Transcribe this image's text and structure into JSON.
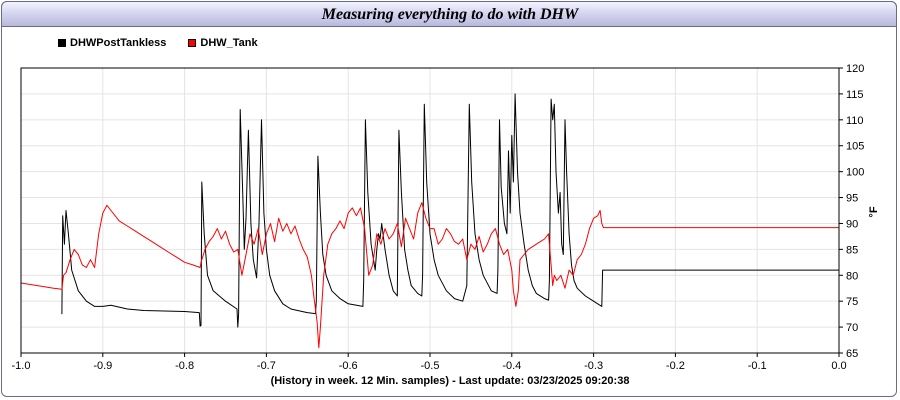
{
  "chart_data": {
    "type": "line",
    "title": "Measuring everything to do with DHW",
    "xlabel": "(History in week. 12 Min. samples) - Last update: 03/23/2025 09:20:38",
    "ylabel": "°F",
    "xlim": [
      -1.0,
      0.0
    ],
    "ylim": [
      65,
      120
    ],
    "x_ticks": [
      "-1.0",
      "-0.9",
      "-0.8",
      "-0.7",
      "-0.6",
      "-0.5",
      "-0.4",
      "-0.3",
      "-0.2",
      "-0.1",
      "0.0"
    ],
    "y_ticks": [
      "65",
      "70",
      "75",
      "80",
      "85",
      "90",
      "95",
      "100",
      "105",
      "110",
      "115",
      "120"
    ],
    "grid": true,
    "legend": "top-left",
    "series": [
      {
        "name": "DHWPostTankless",
        "color": "#000000",
        "points": [
          [
            -0.95,
            72.5
          ],
          [
            -0.949,
            91.5
          ],
          [
            -0.947,
            86
          ],
          [
            -0.945,
            92.5
          ],
          [
            -0.942,
            88
          ],
          [
            -0.938,
            81
          ],
          [
            -0.93,
            77
          ],
          [
            -0.92,
            75
          ],
          [
            -0.91,
            74
          ],
          [
            -0.9,
            74
          ],
          [
            -0.89,
            74.2
          ],
          [
            -0.87,
            73.5
          ],
          [
            -0.85,
            73.2
          ],
          [
            -0.8,
            73
          ],
          [
            -0.782,
            72.8
          ],
          [
            -0.781,
            70.2
          ],
          [
            -0.78,
            70.3
          ],
          [
            -0.779,
            98
          ],
          [
            -0.776,
            88
          ],
          [
            -0.772,
            80
          ],
          [
            -0.765,
            77
          ],
          [
            -0.75,
            75
          ],
          [
            -0.736,
            73.5
          ],
          [
            -0.735,
            70
          ],
          [
            -0.734,
            72.5
          ],
          [
            -0.732,
            112
          ],
          [
            -0.729,
            96
          ],
          [
            -0.727,
            85
          ],
          [
            -0.725,
            91
          ],
          [
            -0.722,
            108
          ],
          [
            -0.719,
            90
          ],
          [
            -0.716,
            83
          ],
          [
            -0.712,
            79.5
          ],
          [
            -0.709,
            90
          ],
          [
            -0.706,
            110
          ],
          [
            -0.703,
            92
          ],
          [
            -0.7,
            85
          ],
          [
            -0.696,
            80
          ],
          [
            -0.69,
            77
          ],
          [
            -0.68,
            74.5
          ],
          [
            -0.67,
            73.5
          ],
          [
            -0.65,
            72.8
          ],
          [
            -0.64,
            72.6
          ],
          [
            -0.639,
            75
          ],
          [
            -0.637,
            103
          ],
          [
            -0.634,
            92
          ],
          [
            -0.631,
            84
          ],
          [
            -0.627,
            80
          ],
          [
            -0.62,
            77
          ],
          [
            -0.61,
            75.5
          ],
          [
            -0.6,
            74.5
          ],
          [
            -0.582,
            74
          ],
          [
            -0.581,
            79
          ],
          [
            -0.579,
            110
          ],
          [
            -0.576,
            96
          ],
          [
            -0.572,
            86
          ],
          [
            -0.567,
            81
          ],
          [
            -0.565,
            85
          ],
          [
            -0.563,
            88
          ],
          [
            -0.561,
            87
          ],
          [
            -0.559,
            90
          ],
          [
            -0.555,
            85
          ],
          [
            -0.55,
            80
          ],
          [
            -0.545,
            77
          ],
          [
            -0.54,
            76
          ],
          [
            -0.538,
            108
          ],
          [
            -0.535,
            96
          ],
          [
            -0.531,
            85
          ],
          [
            -0.527,
            81
          ],
          [
            -0.523,
            78
          ],
          [
            -0.515,
            76.5
          ],
          [
            -0.51,
            76
          ],
          [
            -0.509,
            80
          ],
          [
            -0.507,
            113
          ],
          [
            -0.504,
            98
          ],
          [
            -0.5,
            88
          ],
          [
            -0.495,
            83
          ],
          [
            -0.49,
            80
          ],
          [
            -0.48,
            77
          ],
          [
            -0.47,
            75.5
          ],
          [
            -0.46,
            75
          ],
          [
            -0.455,
            78
          ],
          [
            -0.452,
            113
          ],
          [
            -0.449,
            98
          ],
          [
            -0.445,
            88
          ],
          [
            -0.44,
            83
          ],
          [
            -0.435,
            80
          ],
          [
            -0.425,
            77
          ],
          [
            -0.418,
            76.5
          ],
          [
            -0.417,
            81
          ],
          [
            -0.415,
            110
          ],
          [
            -0.413,
            97
          ],
          [
            -0.409,
            90
          ],
          [
            -0.406,
            88
          ],
          [
            -0.404,
            104
          ],
          [
            -0.402,
            92
          ],
          [
            -0.4,
            107
          ],
          [
            -0.398,
            98
          ],
          [
            -0.396,
            115
          ],
          [
            -0.393,
            100
          ],
          [
            -0.39,
            92
          ],
          [
            -0.385,
            86
          ],
          [
            -0.38,
            81
          ],
          [
            -0.375,
            78
          ],
          [
            -0.37,
            76.5
          ],
          [
            -0.36,
            75.5
          ],
          [
            -0.355,
            75.2
          ],
          [
            -0.354,
            79
          ],
          [
            -0.352,
            114
          ],
          [
            -0.35,
            110
          ],
          [
            -0.348,
            113
          ],
          [
            -0.346,
            100
          ],
          [
            -0.343,
            92
          ],
          [
            -0.341,
            96
          ],
          [
            -0.339,
            86
          ],
          [
            -0.337,
            84
          ],
          [
            -0.335,
            110
          ],
          [
            -0.333,
            100
          ],
          [
            -0.33,
            88
          ],
          [
            -0.327,
            82
          ],
          [
            -0.324,
            79
          ],
          [
            -0.32,
            77.5
          ],
          [
            -0.31,
            76
          ],
          [
            -0.3,
            75
          ],
          [
            -0.29,
            74
          ],
          [
            -0.289,
            81
          ],
          [
            0.0,
            81
          ]
        ]
      },
      {
        "name": "DHW_Tank",
        "color": "#ff0000",
        "points": [
          [
            -1.0,
            78.5
          ],
          [
            -0.98,
            78
          ],
          [
            -0.96,
            77.5
          ],
          [
            -0.95,
            77.3
          ],
          [
            -0.948,
            80
          ],
          [
            -0.945,
            80.5
          ],
          [
            -0.94,
            83
          ],
          [
            -0.935,
            85
          ],
          [
            -0.93,
            84
          ],
          [
            -0.925,
            82
          ],
          [
            -0.92,
            81.5
          ],
          [
            -0.915,
            83
          ],
          [
            -0.91,
            81.5
          ],
          [
            -0.905,
            88
          ],
          [
            -0.9,
            92
          ],
          [
            -0.895,
            93.5
          ],
          [
            -0.89,
            92.5
          ],
          [
            -0.88,
            90.5
          ],
          [
            -0.87,
            89.5
          ],
          [
            -0.86,
            88.5
          ],
          [
            -0.85,
            87.5
          ],
          [
            -0.84,
            86.5
          ],
          [
            -0.83,
            85.5
          ],
          [
            -0.82,
            84.5
          ],
          [
            -0.81,
            83.5
          ],
          [
            -0.8,
            82.5
          ],
          [
            -0.79,
            82
          ],
          [
            -0.781,
            81.5
          ],
          [
            -0.78,
            82.5
          ],
          [
            -0.775,
            85
          ],
          [
            -0.77,
            86.5
          ],
          [
            -0.765,
            87.5
          ],
          [
            -0.76,
            89
          ],
          [
            -0.755,
            87
          ],
          [
            -0.75,
            88.5
          ],
          [
            -0.745,
            86
          ],
          [
            -0.74,
            84.5
          ],
          [
            -0.735,
            85
          ],
          [
            -0.73,
            80
          ],
          [
            -0.725,
            84
          ],
          [
            -0.72,
            88
          ],
          [
            -0.715,
            86
          ],
          [
            -0.71,
            89
          ],
          [
            -0.705,
            84
          ],
          [
            -0.7,
            88
          ],
          [
            -0.695,
            90
          ],
          [
            -0.69,
            86.5
          ],
          [
            -0.685,
            91
          ],
          [
            -0.68,
            88.5
          ],
          [
            -0.675,
            90
          ],
          [
            -0.67,
            88
          ],
          [
            -0.665,
            89.5
          ],
          [
            -0.66,
            87
          ],
          [
            -0.655,
            85
          ],
          [
            -0.65,
            83.5
          ],
          [
            -0.645,
            80
          ],
          [
            -0.642,
            76
          ],
          [
            -0.638,
            71
          ],
          [
            -0.636,
            66
          ],
          [
            -0.634,
            70
          ],
          [
            -0.63,
            80
          ],
          [
            -0.625,
            86
          ],
          [
            -0.62,
            88
          ],
          [
            -0.615,
            89
          ],
          [
            -0.61,
            90.5
          ],
          [
            -0.605,
            89
          ],
          [
            -0.6,
            92
          ],
          [
            -0.595,
            93
          ],
          [
            -0.59,
            91.5
          ],
          [
            -0.585,
            93
          ],
          [
            -0.58,
            89
          ],
          [
            -0.575,
            80
          ],
          [
            -0.57,
            82
          ],
          [
            -0.565,
            88
          ],
          [
            -0.56,
            86
          ],
          [
            -0.555,
            89
          ],
          [
            -0.55,
            87
          ],
          [
            -0.545,
            88
          ],
          [
            -0.54,
            90
          ],
          [
            -0.535,
            85.5
          ],
          [
            -0.53,
            91
          ],
          [
            -0.525,
            89
          ],
          [
            -0.52,
            87
          ],
          [
            -0.515,
            92
          ],
          [
            -0.51,
            94
          ],
          [
            -0.505,
            91
          ],
          [
            -0.5,
            89
          ],
          [
            -0.495,
            89
          ],
          [
            -0.49,
            86
          ],
          [
            -0.485,
            87
          ],
          [
            -0.48,
            89
          ],
          [
            -0.475,
            88
          ],
          [
            -0.47,
            86.5
          ],
          [
            -0.465,
            86
          ],
          [
            -0.46,
            87
          ],
          [
            -0.455,
            83
          ],
          [
            -0.45,
            86
          ],
          [
            -0.445,
            85
          ],
          [
            -0.44,
            87.5
          ],
          [
            -0.435,
            84.5
          ],
          [
            -0.43,
            86
          ],
          [
            -0.425,
            88
          ],
          [
            -0.42,
            89
          ],
          [
            -0.415,
            86
          ],
          [
            -0.41,
            84
          ],
          [
            -0.405,
            85
          ],
          [
            -0.4,
            81
          ],
          [
            -0.398,
            77
          ],
          [
            -0.395,
            74
          ],
          [
            -0.392,
            77
          ],
          [
            -0.39,
            83
          ],
          [
            -0.385,
            84
          ],
          [
            -0.38,
            85
          ],
          [
            -0.375,
            85.5
          ],
          [
            -0.37,
            86
          ],
          [
            -0.365,
            86.5
          ],
          [
            -0.36,
            87
          ],
          [
            -0.355,
            88
          ],
          [
            -0.352,
            82
          ],
          [
            -0.35,
            78
          ],
          [
            -0.348,
            80
          ],
          [
            -0.345,
            79
          ],
          [
            -0.34,
            80
          ],
          [
            -0.335,
            77.5
          ],
          [
            -0.33,
            81
          ],
          [
            -0.325,
            80
          ],
          [
            -0.32,
            83
          ],
          [
            -0.315,
            84
          ],
          [
            -0.31,
            86
          ],
          [
            -0.305,
            89
          ],
          [
            -0.3,
            91
          ],
          [
            -0.295,
            91.5
          ],
          [
            -0.292,
            92.5
          ],
          [
            -0.29,
            90
          ],
          [
            -0.288,
            89.2
          ],
          [
            0.0,
            89.2
          ]
        ]
      }
    ]
  }
}
